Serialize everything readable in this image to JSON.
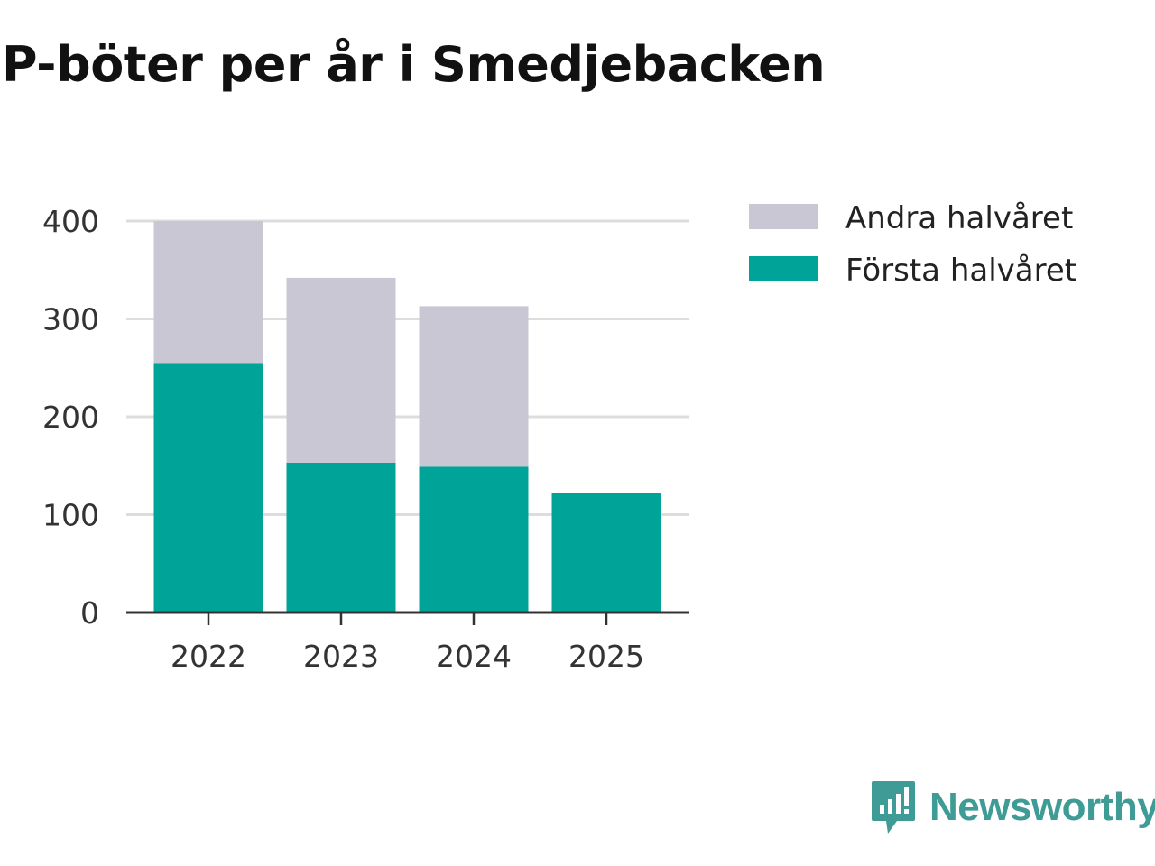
{
  "chart_data": {
    "type": "bar",
    "stacked": true,
    "title": "P-böter per år i Smedjebacken",
    "xlabel": "",
    "ylabel": "",
    "categories": [
      "2022",
      "2023",
      "2024",
      "2025"
    ],
    "series": [
      {
        "name": "Första halvåret",
        "color": "#00a398",
        "values": [
          255,
          153,
          149,
          122
        ]
      },
      {
        "name": "Andra halvåret",
        "color": "#c8c7d3",
        "values": [
          145,
          189,
          164,
          0
        ]
      }
    ],
    "ylim": [
      0,
      400
    ],
    "yticks": [
      0,
      100,
      200,
      300,
      400
    ],
    "grid": true,
    "legend_position": "top-right",
    "legend_order": [
      "Andra halvåret",
      "Första halvåret"
    ]
  },
  "branding": {
    "name": "Newsworthy",
    "color": "#3f9b95",
    "icon": "newsworthy-logo-icon"
  }
}
